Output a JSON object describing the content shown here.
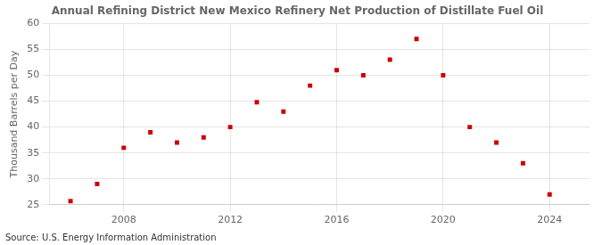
{
  "chart_data": {
    "type": "scatter",
    "title": "Annual Refining District New Mexico Refinery Net Production of Distillate Fuel Oil",
    "ylabel": "Thousand Barrels per Day",
    "annotations": [
      "Source: U.S. Energy Information Administration"
    ],
    "x": [
      2006,
      2007,
      2008,
      2009,
      2010,
      2011,
      2012,
      2013,
      2014,
      2015,
      2016,
      2017,
      2018,
      2019,
      2020,
      2021,
      2022,
      2023,
      2024
    ],
    "values": [
      25.7,
      29.0,
      36.0,
      39.0,
      37.0,
      38.0,
      40.0,
      44.8,
      43.0,
      48.0,
      51.0,
      50.0,
      53.0,
      57.0,
      50.0,
      40.0,
      37.0,
      33.0,
      27.0
    ],
    "color": "#cc0000",
    "marker": "square",
    "xlim": [
      2005.2,
      2025.5
    ],
    "xticks": [
      2008,
      2012,
      2016,
      2020,
      2024
    ],
    "ylim": [
      25,
      60
    ],
    "yticks": [
      25,
      30,
      35,
      40,
      45,
      50,
      55,
      60
    ],
    "grid": true
  }
}
